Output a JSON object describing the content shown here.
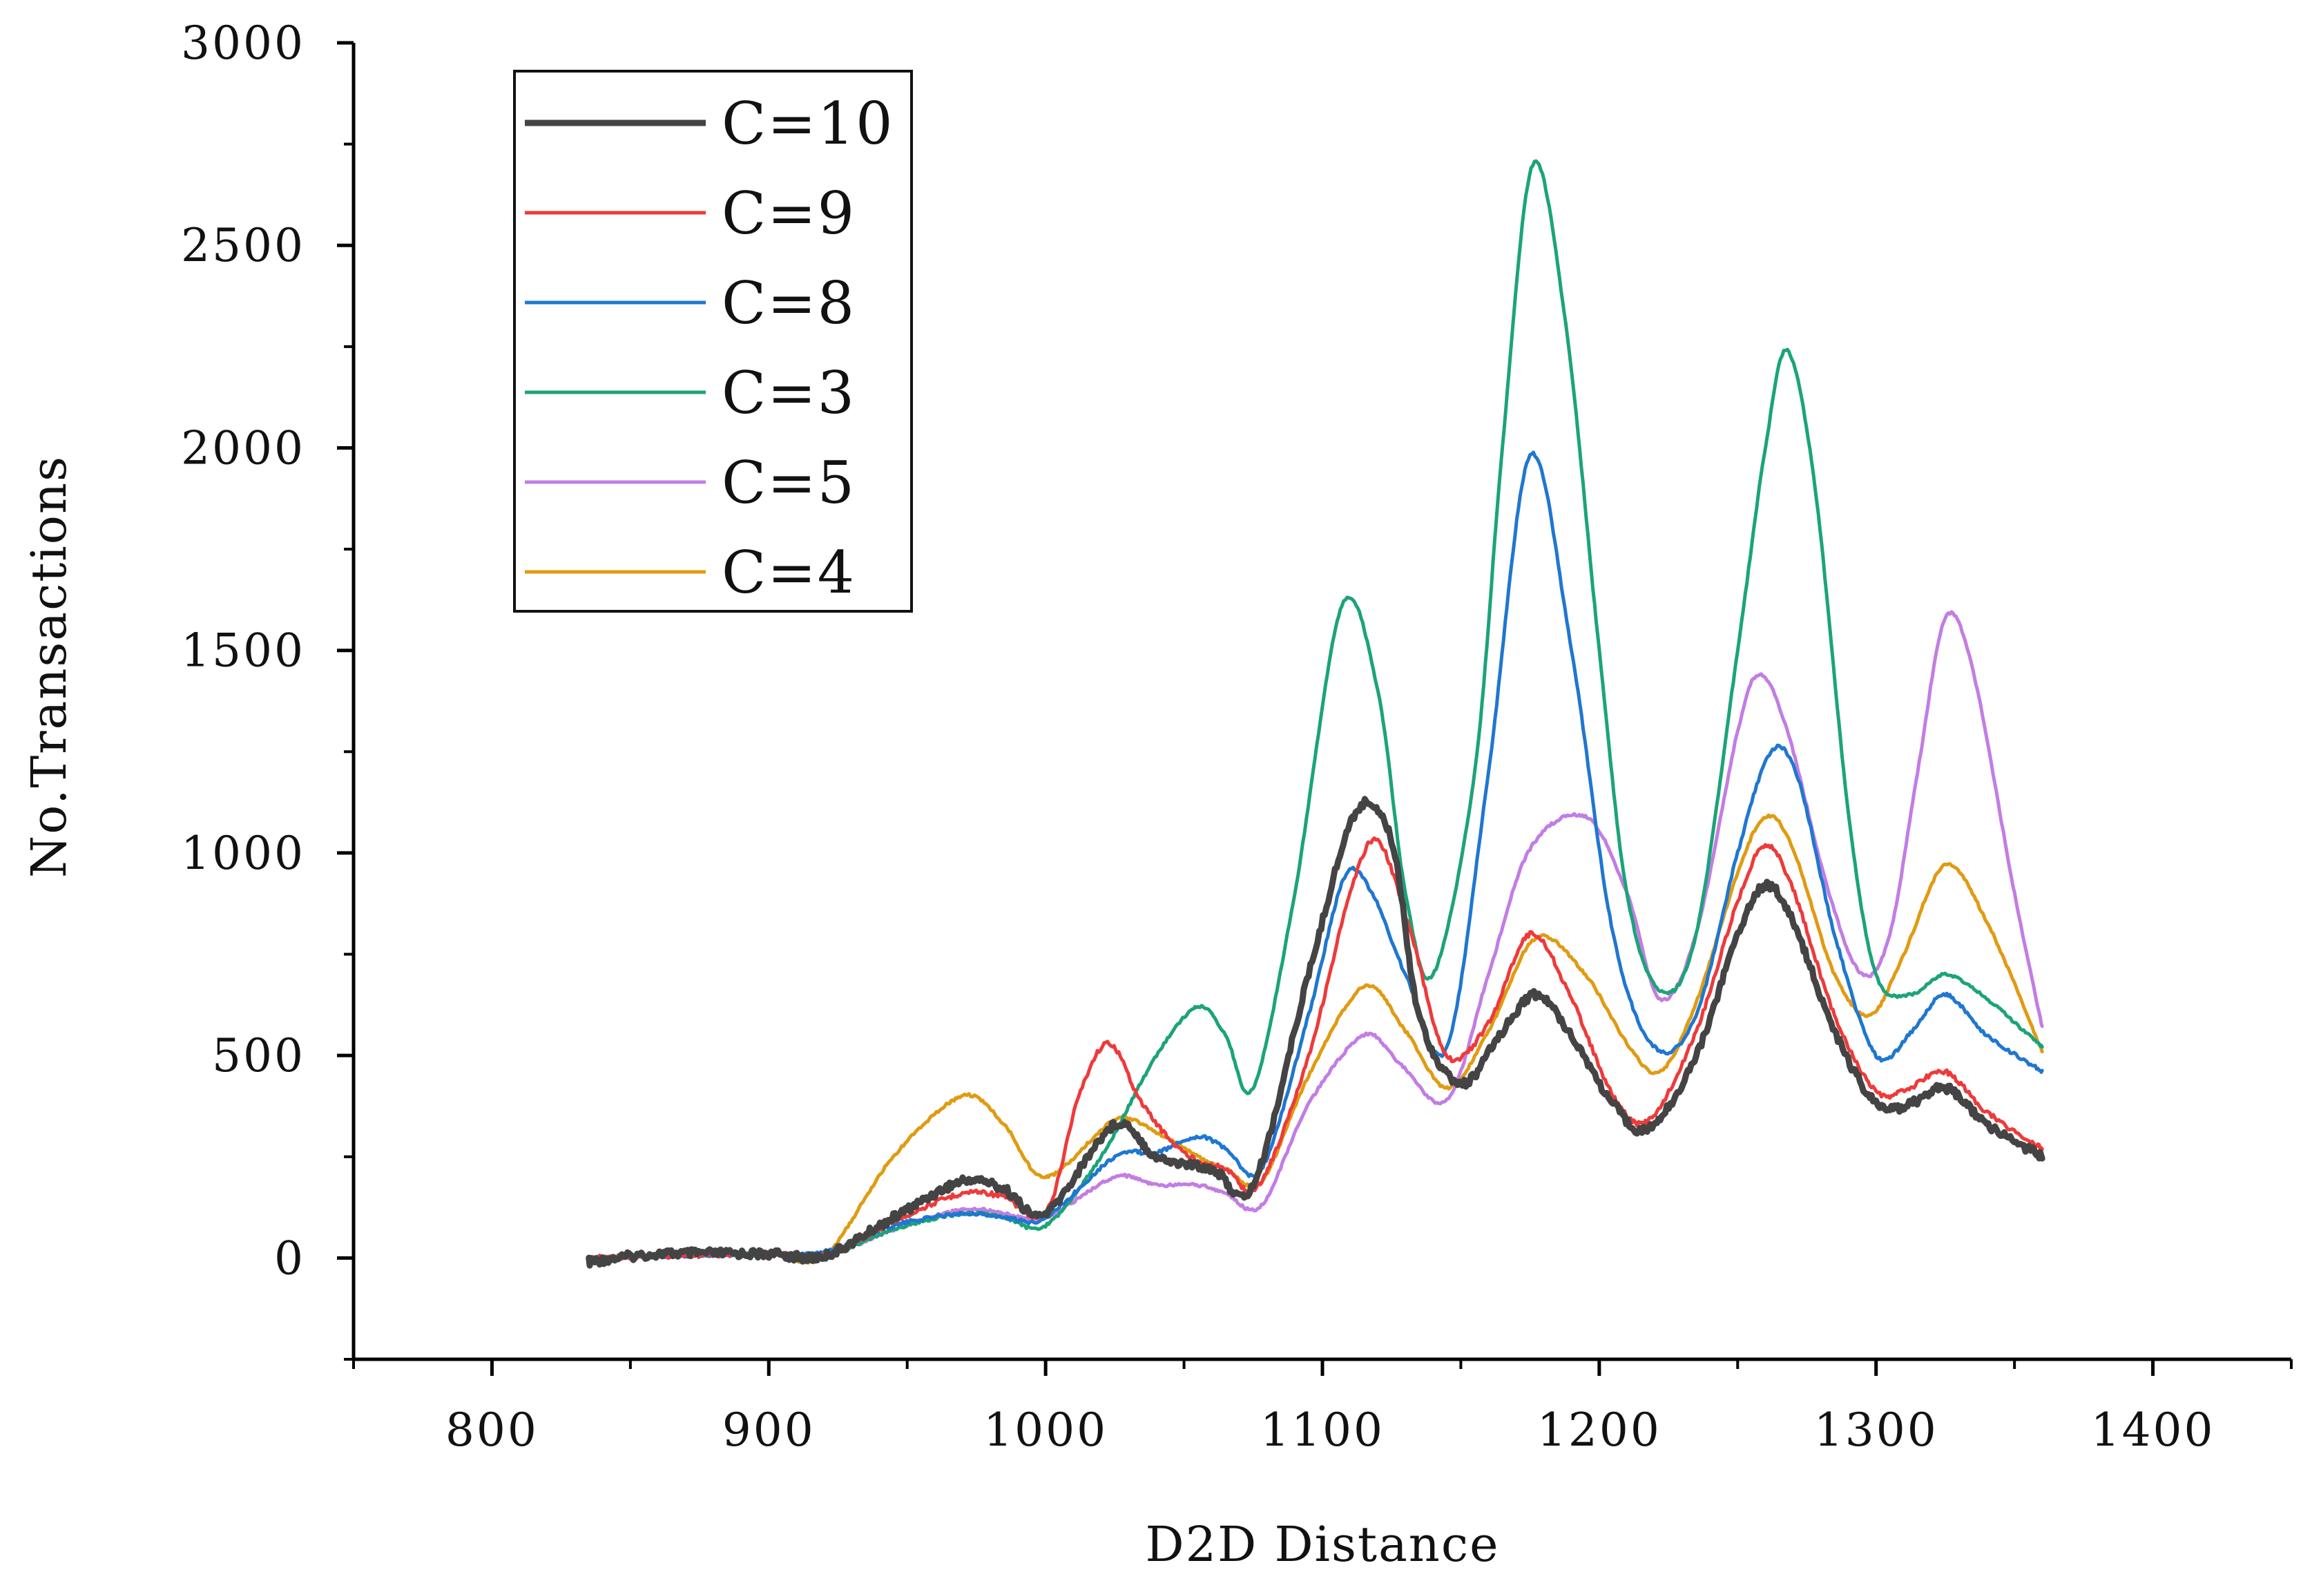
{
  "chart_data": {
    "type": "line",
    "xlabel": "D2D Distance",
    "ylabel": "No.Transactions",
    "xlim": [
      750,
      1450
    ],
    "ylim": [
      -250,
      3000
    ],
    "x_ticks": [
      800,
      900,
      1000,
      1100,
      1200,
      1300,
      1400
    ],
    "y_ticks": [
      0,
      500,
      1000,
      1500,
      2000,
      2500,
      3000
    ],
    "legend_position": "top-left",
    "series": [
      {
        "name": "C=10",
        "color": "#444444",
        "x": [
          835,
          860,
          900,
          920,
          945,
          970,
          985,
          1000,
          1025,
          1040,
          1060,
          1075,
          1095,
          1112,
          1125,
          1135,
          1150,
          1165,
          1177,
          1190,
          1205,
          1218,
          1235,
          1250,
          1260,
          1270,
          1285,
          1300,
          1312,
          1325,
          1340,
          1360
        ],
        "y": [
          -10,
          10,
          10,
          5,
          100,
          190,
          170,
          110,
          330,
          250,
          220,
          180,
          700,
          1100,
          1030,
          600,
          430,
          560,
          650,
          550,
          380,
          320,
          500,
          800,
          920,
          830,
          560,
          380,
          380,
          420,
          330,
          250
        ]
      },
      {
        "name": "C=9",
        "color": "#ee3a3a",
        "x": [
          835,
          860,
          900,
          920,
          945,
          970,
          985,
          1000,
          1012,
          1023,
          1035,
          1050,
          1065,
          1077,
          1095,
          1110,
          1120,
          1132,
          1145,
          1160,
          1175,
          1190,
          1205,
          1218,
          1235,
          1250,
          1260,
          1270,
          1285,
          1300,
          1312,
          1325,
          1340,
          1360
        ],
        "y": [
          0,
          5,
          10,
          5,
          90,
          160,
          150,
          110,
          400,
          530,
          380,
          260,
          220,
          180,
          500,
          900,
          1030,
          800,
          500,
          580,
          800,
          640,
          400,
          340,
          560,
          880,
          1020,
          910,
          600,
          410,
          420,
          460,
          360,
          270
        ]
      },
      {
        "name": "C=8",
        "color": "#1f77d0",
        "x": [
          835,
          860,
          900,
          920,
          945,
          970,
          985,
          1000,
          1025,
          1040,
          1055,
          1065,
          1078,
          1095,
          1108,
          1118,
          1130,
          1145,
          1160,
          1175,
          1190,
          1205,
          1220,
          1235,
          1250,
          1262,
          1272,
          1285,
          1300,
          1313,
          1325,
          1340,
          1360
        ],
        "y": [
          0,
          5,
          10,
          15,
          80,
          110,
          100,
          100,
          250,
          260,
          300,
          270,
          220,
          600,
          940,
          900,
          700,
          520,
          1200,
          1980,
          1500,
          800,
          520,
          600,
          1000,
          1250,
          1180,
          800,
          500,
          560,
          650,
          550,
          460
        ]
      },
      {
        "name": "C=3",
        "color": "#1ca37a",
        "x": [
          835,
          860,
          900,
          920,
          945,
          970,
          985,
          1000,
          1020,
          1040,
          1055,
          1065,
          1075,
          1090,
          1107,
          1120,
          1130,
          1140,
          1155,
          1165,
          1176,
          1188,
          1200,
          1210,
          1222,
          1235,
          1250,
          1260,
          1268,
          1278,
          1290,
          1300,
          1312,
          1325,
          1340,
          1360
        ],
        "y": [
          0,
          5,
          10,
          5,
          70,
          110,
          100,
          80,
          250,
          500,
          620,
          550,
          420,
          900,
          1610,
          1400,
          900,
          700,
          1200,
          2000,
          2700,
          2300,
          1500,
          900,
          660,
          800,
          1500,
          2000,
          2240,
          1900,
          1100,
          700,
          650,
          700,
          640,
          520
        ]
      },
      {
        "name": "C=5",
        "color": "#c27de3",
        "x": [
          835,
          860,
          900,
          920,
          945,
          970,
          985,
          1000,
          1025,
          1040,
          1055,
          1065,
          1078,
          1095,
          1115,
          1128,
          1145,
          1160,
          1175,
          1195,
          1210,
          1222,
          1235,
          1250,
          1258,
          1268,
          1283,
          1295,
          1305,
          1315,
          1325,
          1335,
          1350,
          1360
        ],
        "y": [
          0,
          5,
          10,
          5,
          70,
          120,
          110,
          100,
          200,
          180,
          180,
          160,
          130,
          380,
          550,
          480,
          390,
          700,
          1010,
          1090,
          900,
          640,
          800,
          1300,
          1440,
          1300,
          900,
          700,
          800,
          1200,
          1580,
          1450,
          900,
          570
        ]
      },
      {
        "name": "C=4",
        "color": "#e09b12",
        "x": [
          835,
          860,
          900,
          920,
          945,
          970,
          985,
          1000,
          1025,
          1040,
          1055,
          1065,
          1078,
          1095,
          1115,
          1130,
          1145,
          1160,
          1177,
          1195,
          1210,
          1222,
          1235,
          1250,
          1260,
          1270,
          1285,
          1298,
          1310,
          1325,
          1340,
          1360
        ],
        "y": [
          0,
          5,
          10,
          5,
          250,
          400,
          330,
          200,
          340,
          310,
          250,
          220,
          190,
          450,
          670,
          560,
          420,
          560,
          790,
          700,
          530,
          460,
          630,
          950,
          1090,
          1010,
          700,
          600,
          750,
          970,
          830,
          510
        ]
      }
    ]
  }
}
